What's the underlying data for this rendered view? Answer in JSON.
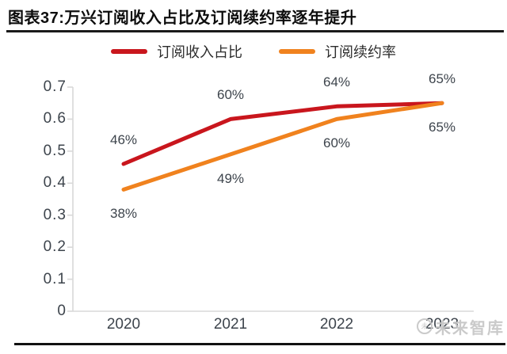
{
  "header": {
    "title": "图表37:万兴订阅收入占比及订阅续约率逐年提升"
  },
  "watermark": {
    "text": "未来智库"
  },
  "chart_data": {
    "type": "line",
    "title": "图表37:万兴订阅收入占比及订阅续约率逐年提升",
    "categories": [
      "2020",
      "2021",
      "2022",
      "2023"
    ],
    "series": [
      {
        "name": "订阅收入占比",
        "color": "#C9161D",
        "values": [
          0.46,
          0.6,
          0.64,
          0.65
        ],
        "point_labels": [
          "46%",
          "60%",
          "64%",
          "65%"
        ]
      },
      {
        "name": "订阅续约率",
        "color": "#F0821E",
        "values": [
          0.38,
          0.49,
          0.6,
          0.65
        ],
        "point_labels": [
          "38%",
          "49%",
          "60%",
          "65%"
        ]
      }
    ],
    "xlabel": "",
    "ylabel": "",
    "ylim": [
      0,
      0.7
    ],
    "ytick_labels": [
      "0.7",
      "0.6",
      "0.5",
      "0.4",
      "0.3",
      "0.2",
      "0.1",
      "0"
    ],
    "grid": false,
    "legend_position": "top-center",
    "axis_color": "#d8d8d8",
    "label_color": "#3d444c"
  }
}
